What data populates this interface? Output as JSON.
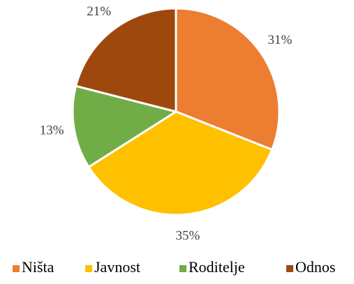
{
  "chart_data": {
    "type": "pie",
    "categories": [
      "Ništa",
      "Javnost",
      "Roditelje",
      "Odnos"
    ],
    "values": [
      31,
      35,
      13,
      21
    ],
    "value_labels": [
      "31%",
      "35%",
      "13%",
      "21%"
    ],
    "colors": [
      "#ED7D31",
      "#FFC000",
      "#70AD47",
      "#9E480E"
    ],
    "legend": "bottom"
  }
}
